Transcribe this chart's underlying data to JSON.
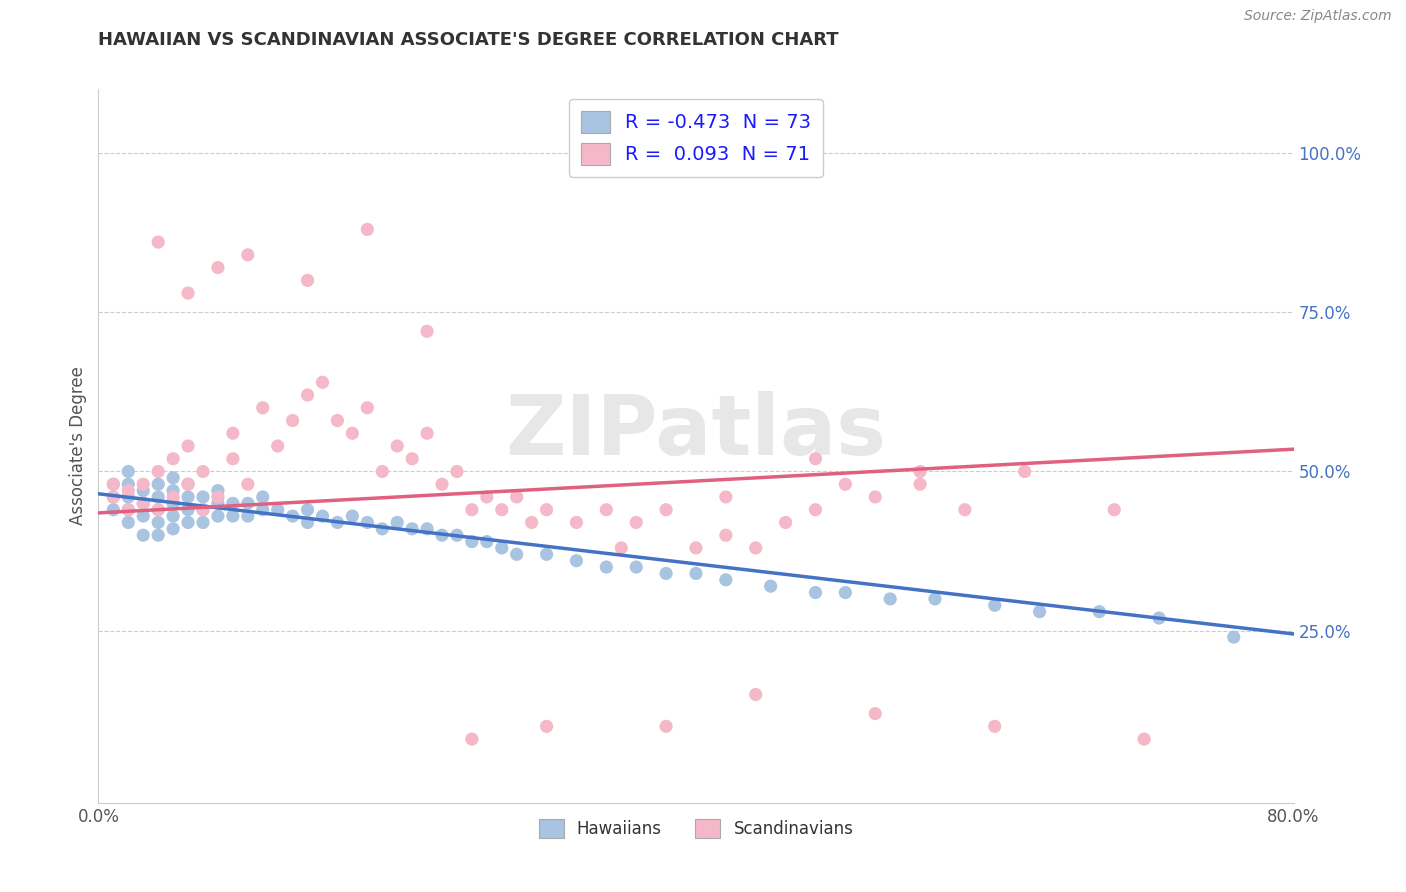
{
  "title": "HAWAIIAN VS SCANDINAVIAN ASSOCIATE'S DEGREE CORRELATION CHART",
  "source": "Source: ZipAtlas.com",
  "xlabel_hawaiians": "Hawaiians",
  "xlabel_scandinavians": "Scandinavians",
  "ylabel": "Associate's Degree",
  "xlim": [
    0.0,
    0.8
  ],
  "ylim": [
    -0.02,
    1.1
  ],
  "grid_color": "#cccccc",
  "background_color": "#ffffff",
  "hawaiian_color": "#a8c4e0",
  "scandinavian_color": "#f4b8c8",
  "hawaiian_line_color": "#4472c4",
  "scandinavian_line_color": "#e06080",
  "legend_R_hawaiian": "-0.473",
  "legend_N_hawaiian": "73",
  "legend_R_scandinavian": "0.093",
  "legend_N_scandinavian": "71",
  "ytick_values": [
    0.25,
    0.5,
    0.75,
    1.0
  ],
  "ytick_labels": [
    "25.0%",
    "50.0%",
    "75.0%",
    "100.0%"
  ],
  "hawaiian_trend": [
    0.465,
    0.245
  ],
  "scandinavian_trend": [
    0.435,
    0.535
  ],
  "hawaiian_x": [
    0.01,
    0.01,
    0.01,
    0.02,
    0.02,
    0.02,
    0.02,
    0.02,
    0.03,
    0.03,
    0.03,
    0.03,
    0.04,
    0.04,
    0.04,
    0.04,
    0.04,
    0.05,
    0.05,
    0.05,
    0.05,
    0.05,
    0.06,
    0.06,
    0.06,
    0.06,
    0.07,
    0.07,
    0.07,
    0.08,
    0.08,
    0.08,
    0.09,
    0.09,
    0.1,
    0.1,
    0.11,
    0.11,
    0.12,
    0.13,
    0.14,
    0.14,
    0.15,
    0.16,
    0.17,
    0.18,
    0.19,
    0.2,
    0.21,
    0.22,
    0.23,
    0.24,
    0.25,
    0.26,
    0.27,
    0.28,
    0.3,
    0.32,
    0.34,
    0.36,
    0.38,
    0.4,
    0.42,
    0.45,
    0.48,
    0.5,
    0.53,
    0.56,
    0.6,
    0.63,
    0.67,
    0.71,
    0.76
  ],
  "hawaiian_y": [
    0.44,
    0.46,
    0.48,
    0.42,
    0.44,
    0.46,
    0.48,
    0.5,
    0.4,
    0.43,
    0.45,
    0.47,
    0.4,
    0.42,
    0.44,
    0.46,
    0.48,
    0.41,
    0.43,
    0.45,
    0.47,
    0.49,
    0.42,
    0.44,
    0.46,
    0.48,
    0.42,
    0.44,
    0.46,
    0.43,
    0.45,
    0.47,
    0.43,
    0.45,
    0.43,
    0.45,
    0.44,
    0.46,
    0.44,
    0.43,
    0.44,
    0.42,
    0.43,
    0.42,
    0.43,
    0.42,
    0.41,
    0.42,
    0.41,
    0.41,
    0.4,
    0.4,
    0.39,
    0.39,
    0.38,
    0.37,
    0.37,
    0.36,
    0.35,
    0.35,
    0.34,
    0.34,
    0.33,
    0.32,
    0.31,
    0.31,
    0.3,
    0.3,
    0.29,
    0.28,
    0.28,
    0.27,
    0.24
  ],
  "scandinavian_x": [
    0.01,
    0.01,
    0.02,
    0.02,
    0.03,
    0.03,
    0.04,
    0.04,
    0.05,
    0.05,
    0.06,
    0.06,
    0.07,
    0.07,
    0.08,
    0.09,
    0.09,
    0.1,
    0.11,
    0.12,
    0.13,
    0.14,
    0.15,
    0.16,
    0.17,
    0.18,
    0.19,
    0.2,
    0.21,
    0.22,
    0.23,
    0.24,
    0.25,
    0.26,
    0.27,
    0.28,
    0.29,
    0.3,
    0.32,
    0.34,
    0.36,
    0.38,
    0.4,
    0.42,
    0.44,
    0.46,
    0.48,
    0.5,
    0.52,
    0.55,
    0.58,
    0.14,
    0.22,
    0.3,
    0.38,
    0.18,
    0.25,
    0.1,
    0.08,
    0.06,
    0.04,
    0.35,
    0.42,
    0.48,
    0.55,
    0.62,
    0.68,
    0.44,
    0.52,
    0.6,
    0.7
  ],
  "scandinavian_y": [
    0.46,
    0.48,
    0.44,
    0.47,
    0.45,
    0.48,
    0.44,
    0.5,
    0.46,
    0.52,
    0.48,
    0.54,
    0.44,
    0.5,
    0.46,
    0.52,
    0.56,
    0.48,
    0.6,
    0.54,
    0.58,
    0.62,
    0.64,
    0.58,
    0.56,
    0.6,
    0.5,
    0.54,
    0.52,
    0.56,
    0.48,
    0.5,
    0.44,
    0.46,
    0.44,
    0.46,
    0.42,
    0.44,
    0.42,
    0.44,
    0.42,
    0.44,
    0.38,
    0.4,
    0.38,
    0.42,
    0.44,
    0.48,
    0.46,
    0.5,
    0.44,
    0.8,
    0.72,
    0.1,
    0.1,
    0.88,
    0.08,
    0.84,
    0.82,
    0.78,
    0.86,
    0.38,
    0.46,
    0.52,
    0.48,
    0.5,
    0.44,
    0.15,
    0.12,
    0.1,
    0.08
  ]
}
